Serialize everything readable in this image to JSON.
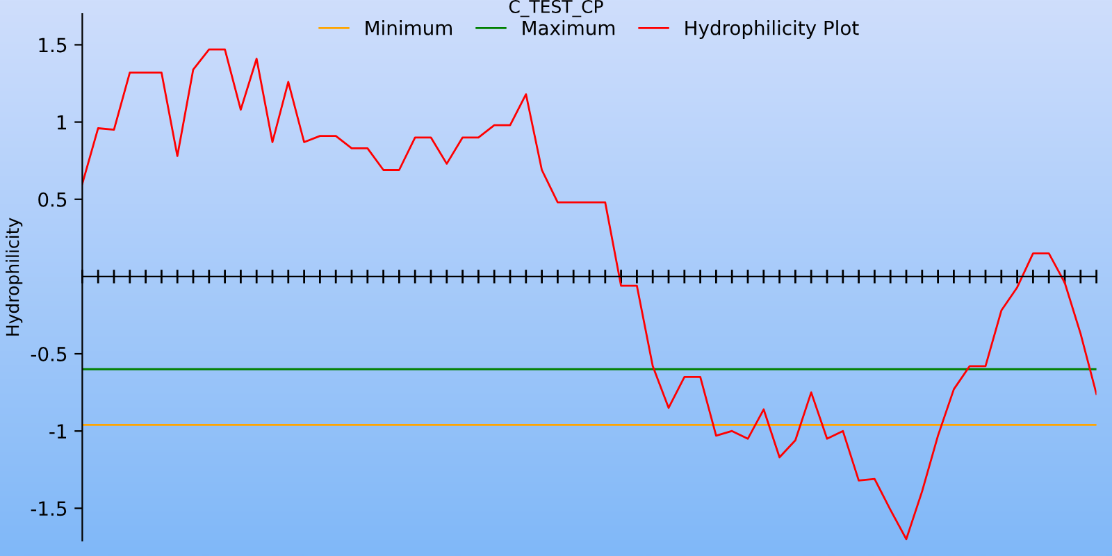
{
  "chart_data": {
    "type": "line",
    "title": "C_TEST_CP",
    "ylabel": "Hydrophilicity",
    "legend": "top",
    "grid": false,
    "marker": "none",
    "line_style": "solid",
    "tick_labels": "y",
    "categories": [
      null,
      null,
      null,
      null,
      null,
      null,
      null,
      null,
      null,
      null,
      null,
      null,
      null,
      null,
      null,
      null,
      null,
      null,
      null,
      null,
      null,
      null,
      null,
      null,
      null,
      null,
      null,
      null,
      null,
      null,
      null,
      null,
      null,
      null,
      null,
      null,
      null,
      null,
      null,
      null,
      null,
      null,
      null,
      null,
      null,
      null,
      null,
      null,
      null,
      null,
      null,
      null,
      null,
      null,
      null,
      null,
      null,
      null,
      null,
      null,
      null,
      null,
      null,
      null,
      null
    ],
    "ylim": [
      -1.71,
      1.7
    ],
    "yticks": [
      -1.5,
      -1,
      -0.5,
      0.5,
      1,
      1.5
    ],
    "series": [
      {
        "name": "Minimum",
        "color": "#ffa500",
        "values": [
          -0.96,
          -0.96,
          -0.96,
          -0.96,
          -0.96,
          -0.96,
          -0.96,
          -0.96,
          -0.96,
          -0.96,
          -0.96,
          -0.96,
          -0.96,
          -0.96,
          -0.96,
          -0.96,
          -0.96,
          -0.96,
          -0.96,
          -0.96,
          -0.96,
          -0.96,
          -0.96,
          -0.96,
          -0.96,
          -0.96,
          -0.96,
          -0.96,
          -0.96,
          -0.96,
          -0.96,
          -0.96,
          -0.96,
          -0.96,
          -0.96,
          -0.96,
          -0.96,
          -0.96,
          -0.96,
          -0.96,
          -0.96,
          -0.96,
          -0.96,
          -0.96,
          -0.96,
          -0.96,
          -0.96,
          -0.96,
          -0.96,
          -0.96,
          -0.96,
          -0.96,
          -0.96,
          -0.96,
          -0.96,
          -0.96,
          -0.96,
          -0.96,
          -0.96,
          -0.96,
          -0.96,
          -0.96,
          -0.96,
          -0.96,
          -0.96
        ]
      },
      {
        "name": "Maximum",
        "color": "#008000",
        "values": [
          -0.6,
          -0.6,
          -0.6,
          -0.6,
          -0.6,
          -0.6,
          -0.6,
          -0.6,
          -0.6,
          -0.6,
          -0.6,
          -0.6,
          -0.6,
          -0.6,
          -0.6,
          -0.6,
          -0.6,
          -0.6,
          -0.6,
          -0.6,
          -0.6,
          -0.6,
          -0.6,
          -0.6,
          -0.6,
          -0.6,
          -0.6,
          -0.6,
          -0.6,
          -0.6,
          -0.6,
          -0.6,
          -0.6,
          -0.6,
          -0.6,
          -0.6,
          -0.6,
          -0.6,
          -0.6,
          -0.6,
          -0.6,
          -0.6,
          -0.6,
          -0.6,
          -0.6,
          -0.6,
          -0.6,
          -0.6,
          -0.6,
          -0.6,
          -0.6,
          -0.6,
          -0.6,
          -0.6,
          -0.6,
          -0.6,
          -0.6,
          -0.6,
          -0.6,
          -0.6,
          -0.6,
          -0.6,
          -0.6,
          -0.6,
          -0.6
        ]
      },
      {
        "name": "Hydrophilicity Plot",
        "color": "#ff0000",
        "values": [
          0.6,
          0.96,
          0.95,
          1.32,
          1.32,
          1.32,
          0.78,
          1.34,
          1.47,
          1.47,
          1.08,
          1.41,
          0.87,
          1.26,
          0.87,
          0.91,
          0.91,
          0.83,
          0.83,
          0.69,
          0.69,
          0.9,
          0.9,
          0.73,
          0.9,
          0.9,
          0.98,
          0.98,
          1.18,
          0.69,
          0.48,
          0.48,
          0.48,
          0.48,
          -0.06,
          -0.06,
          -0.58,
          -0.85,
          -0.65,
          -0.65,
          -1.03,
          -1.0,
          -1.05,
          -0.86,
          -1.17,
          -1.06,
          -0.75,
          -1.05,
          -1.0,
          -1.32,
          -1.31,
          -1.51,
          -1.7,
          -1.39,
          -1.03,
          -0.73,
          -0.58,
          -0.58,
          -0.22,
          -0.07,
          0.15,
          0.15,
          -0.04,
          -0.37,
          -0.76
        ]
      }
    ]
  }
}
